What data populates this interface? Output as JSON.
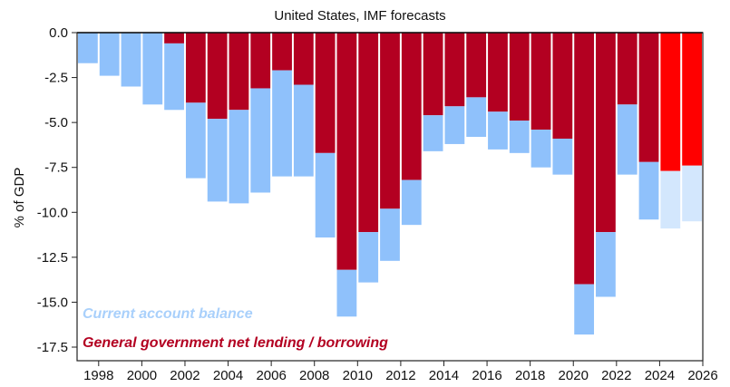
{
  "chart_data": {
    "type": "bar",
    "title": "United States, IMF forecasts",
    "ylabel": "% of GDP",
    "xlabel": "",
    "ylim": [
      -17.5,
      0
    ],
    "ytick_values": [
      0,
      -2.5,
      -5,
      -7.5,
      -10,
      -12.5,
      -15,
      -17.5
    ],
    "ytick_labels": [
      "0.0",
      "-2.5",
      "-5.0",
      "-7.5",
      "-10.0",
      "-12.5",
      "-15.0",
      "-17.5"
    ],
    "xtick_labels": [
      "1998",
      "2000",
      "2002",
      "2004",
      "2006",
      "2008",
      "2010",
      "2012",
      "2014",
      "2016",
      "2018",
      "2020",
      "2022",
      "2024",
      "2026"
    ],
    "categories": [
      1997,
      1998,
      1999,
      2000,
      2001,
      2002,
      2003,
      2004,
      2005,
      2006,
      2007,
      2008,
      2009,
      2010,
      2011,
      2012,
      2013,
      2014,
      2015,
      2016,
      2017,
      2018,
      2019,
      2020,
      2021,
      2022,
      2023,
      2024,
      2025
    ],
    "stacked": true,
    "forecast_from": 2024,
    "series": [
      {
        "name": "General government net lending / borrowing",
        "color": "#b30021",
        "forecast_color": "#ff0000",
        "values": [
          0,
          0,
          0,
          0,
          -0.6,
          -3.9,
          -4.8,
          -4.3,
          -3.1,
          -2.1,
          -2.9,
          -6.7,
          -13.2,
          -11.1,
          -9.8,
          -8.2,
          -4.6,
          -4.1,
          -3.6,
          -4.4,
          -4.9,
          -5.4,
          -5.9,
          -14.0,
          -11.1,
          -4.0,
          -7.2,
          -7.7,
          -7.4
        ]
      },
      {
        "name": "Current account balance",
        "color": "#8fc1fb",
        "forecast_color": "#d3e7fd",
        "values": [
          -1.7,
          -2.4,
          -3.0,
          -4.0,
          -3.7,
          -4.2,
          -4.6,
          -5.2,
          -5.8,
          -5.9,
          -5.1,
          -4.7,
          -2.6,
          -2.8,
          -2.9,
          -2.5,
          -2.0,
          -2.1,
          -2.2,
          -2.1,
          -1.8,
          -2.1,
          -2.0,
          -2.8,
          -3.6,
          -3.9,
          -3.2,
          -3.2,
          -3.1
        ]
      }
    ]
  }
}
